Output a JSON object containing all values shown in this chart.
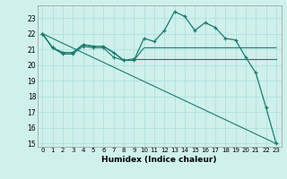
{
  "xlabel": "Humidex (Indice chaleur)",
  "bg_color": "#cff0eb",
  "grid_color": "#aadddd",
  "line_color": "#1a7a6e",
  "xlim": [
    -0.5,
    23.5
  ],
  "ylim": [
    14.8,
    23.8
  ],
  "yticks": [
    15,
    16,
    17,
    18,
    19,
    20,
    21,
    22,
    23
  ],
  "xticks": [
    0,
    1,
    2,
    3,
    4,
    5,
    6,
    7,
    8,
    9,
    10,
    11,
    12,
    13,
    14,
    15,
    16,
    17,
    18,
    19,
    20,
    21,
    22,
    23
  ],
  "line1_x": [
    0,
    1,
    2,
    3,
    4,
    5,
    6,
    7,
    8,
    9,
    10,
    11,
    12,
    13,
    14,
    15,
    16,
    17,
    18,
    19,
    20,
    21,
    22,
    23
  ],
  "line1_y": [
    22.0,
    21.1,
    20.8,
    20.8,
    21.3,
    21.2,
    21.2,
    20.8,
    20.3,
    20.3,
    21.7,
    21.5,
    22.2,
    23.4,
    23.1,
    22.2,
    22.7,
    22.4,
    21.7,
    21.6,
    20.5,
    19.5,
    17.3,
    15.0
  ],
  "line2_x": [
    0,
    1,
    2,
    3,
    4,
    5,
    6,
    7,
    8,
    9,
    10,
    11,
    12,
    13,
    14,
    15,
    16,
    17,
    18,
    19,
    20,
    21,
    22,
    23
  ],
  "line2_y": [
    22.0,
    21.1,
    20.8,
    20.8,
    21.3,
    21.2,
    21.2,
    20.8,
    20.3,
    20.3,
    21.1,
    21.1,
    21.1,
    21.1,
    21.1,
    21.1,
    21.1,
    21.1,
    21.1,
    21.1,
    21.1,
    21.1,
    21.1,
    21.1
  ],
  "line3_x": [
    0,
    1,
    2,
    3,
    4,
    5,
    6,
    7,
    8,
    9,
    10,
    11,
    12,
    13,
    14,
    15,
    16,
    17,
    18,
    19,
    20,
    21,
    22,
    23
  ],
  "line3_y": [
    22.0,
    21.1,
    20.7,
    20.7,
    21.2,
    21.1,
    21.1,
    20.5,
    20.3,
    20.4,
    20.4,
    20.4,
    20.4,
    20.4,
    20.4,
    20.4,
    20.4,
    20.4,
    20.4,
    20.4,
    20.4,
    20.4,
    20.4,
    20.4
  ],
  "line4_x": [
    0,
    23
  ],
  "line4_y": [
    22.0,
    15.0
  ]
}
